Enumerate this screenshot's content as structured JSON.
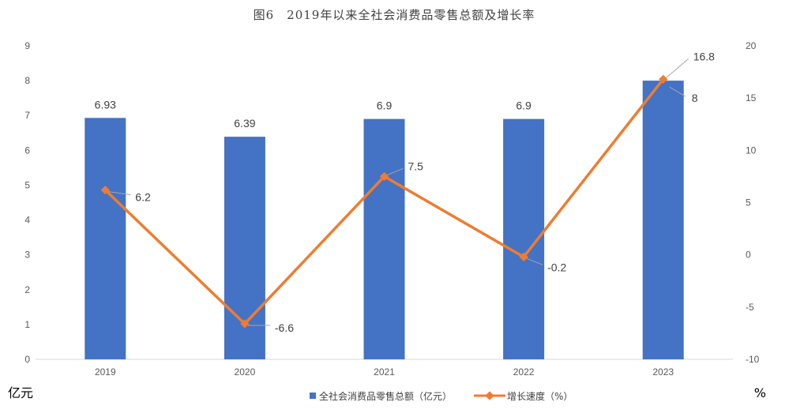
{
  "chart_data": {
    "type": "bar+line",
    "title": "图6　2019年以来全社会消费品零售总额及增长率",
    "categories": [
      "2019",
      "2020",
      "2021",
      "2022",
      "2023"
    ],
    "series": [
      {
        "name": "全社会消费品零售总额（亿元）",
        "type": "bar",
        "axis": "left",
        "color": "#4472C4",
        "values": [
          6.93,
          6.39,
          6.9,
          6.9,
          8
        ],
        "labels": [
          "6.93",
          "6.39",
          "6.9",
          "6.9",
          "8"
        ]
      },
      {
        "name": "增长速度（%）",
        "type": "line",
        "axis": "right",
        "color": "#ED7D31",
        "values": [
          6.2,
          -6.6,
          7.5,
          -0.2,
          16.8
        ],
        "labels": [
          "6.2",
          "-6.6",
          "7.5",
          "-0.2",
          "16.8"
        ]
      }
    ],
    "y_left": {
      "label": "亿元",
      "ylim": [
        0,
        9
      ],
      "ticks": [
        "0",
        "1",
        "2",
        "3",
        "4",
        "5",
        "6",
        "7",
        "8",
        "9"
      ]
    },
    "y_right": {
      "label": "%",
      "ylim": [
        -10,
        20
      ],
      "ticks": [
        "-10",
        "-5",
        "0",
        "5",
        "10",
        "15",
        "20"
      ]
    },
    "grid": false,
    "legend": "bottom"
  }
}
